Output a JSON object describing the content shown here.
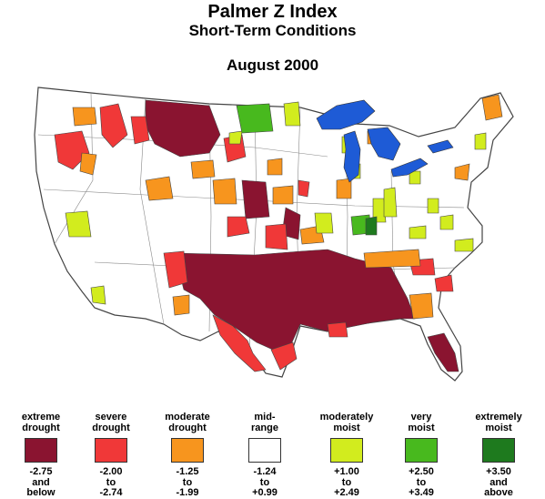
{
  "title": "Palmer Z Index",
  "subtitle": "Short-Term Conditions",
  "period": "August 2000",
  "colors": {
    "water": "#1e5bd6",
    "border": "#444444",
    "extreme_drought": "#8a1430",
    "severe_drought": "#f03838",
    "moderate_drought": "#f7951e",
    "mid_range": "#ffffff",
    "moderately_moist": "#d2ec1e",
    "very_moist": "#48b91e",
    "extremely_moist": "#1e7a1e"
  },
  "legend": [
    {
      "label_lines": [
        "extreme",
        "drought"
      ],
      "range": [
        "-2.75",
        "and",
        "below"
      ],
      "color": "#8a1430"
    },
    {
      "label_lines": [
        "severe",
        "drought"
      ],
      "range": [
        "-2.00",
        "to",
        "-2.74"
      ],
      "color": "#f03838"
    },
    {
      "label_lines": [
        "moderate",
        "drought"
      ],
      "range": [
        "-1.25",
        "to",
        "-1.99"
      ],
      "color": "#f7951e"
    },
    {
      "label_lines": [
        "mid-",
        "range"
      ],
      "range": [
        "-1.24",
        "to",
        "+0.99"
      ],
      "color": "#ffffff"
    },
    {
      "label_lines": [
        "moderately",
        "moist"
      ],
      "range": [
        "+1.00",
        "to",
        "+2.49"
      ],
      "color": "#d2ec1e"
    },
    {
      "label_lines": [
        "very",
        "moist"
      ],
      "range": [
        "+2.50",
        "to",
        "+3.49"
      ],
      "color": "#48b91e"
    },
    {
      "label_lines": [
        "extremely",
        "moist"
      ],
      "range": [
        "+3.50",
        "and",
        "above"
      ],
      "color": "#1e7a1e"
    }
  ]
}
